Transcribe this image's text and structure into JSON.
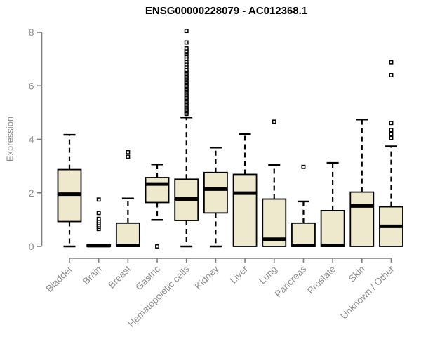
{
  "title": "ENSG00000228079 - AC012368.1",
  "chart_data": {
    "type": "boxplot",
    "title": "ENSG00000228079 - AC012368.1",
    "ylabel": "Expression",
    "xlabel": "",
    "ylim": [
      0,
      8
    ],
    "y_ticks": [
      0,
      2,
      4,
      6,
      8
    ],
    "grid": false,
    "legend": false,
    "categories": [
      "Bladder",
      "Brain",
      "Breast",
      "Gastric",
      "Hematopoietic cells",
      "Kidney",
      "Liver",
      "Lung",
      "Pancreas",
      "Prostate",
      "Skin",
      "Unknown / Other"
    ],
    "series": [
      {
        "name": "Bladder",
        "median": 1.95,
        "q1": 0.93,
        "q3": 2.87,
        "whisker_low": 0,
        "whisker_high": 4.17,
        "outliers": []
      },
      {
        "name": "Brain",
        "median": 0.03,
        "q1": 0.0,
        "q3": 0.06,
        "whisker_low": 0,
        "whisker_high": 0.06,
        "outliers": [
          0.65,
          0.73,
          0.79,
          0.87,
          0.94,
          1.03,
          1.25,
          1.75
        ]
      },
      {
        "name": "Breast",
        "median": 0.04,
        "q1": 0.0,
        "q3": 0.87,
        "whisker_low": 0,
        "whisker_high": 1.79,
        "outliers": [
          3.35,
          3.52
        ]
      },
      {
        "name": "Gastric",
        "median": 2.33,
        "q1": 1.64,
        "q3": 2.57,
        "whisker_low": 0.99,
        "whisker_high": 3.06,
        "outliers": [
          0.0
        ]
      },
      {
        "name": "Hematopoietic cells",
        "median": 1.77,
        "q1": 0.97,
        "q3": 2.51,
        "whisker_low": 0,
        "whisker_high": 4.82,
        "outliers": [
          4.95,
          5.0,
          5.05,
          5.1,
          5.15,
          5.2,
          5.25,
          5.3,
          5.35,
          5.4,
          5.45,
          5.5,
          5.55,
          5.6,
          5.65,
          5.7,
          5.75,
          5.8,
          5.85,
          5.9,
          5.95,
          6.0,
          6.05,
          6.1,
          6.15,
          6.2,
          6.25,
          6.3,
          6.35,
          6.4,
          6.45,
          6.5,
          6.55,
          6.6,
          6.7,
          6.8,
          6.9,
          7.0,
          7.1,
          7.18,
          7.25,
          7.3,
          7.4,
          7.62,
          8.05
        ]
      },
      {
        "name": "Kidney",
        "median": 2.14,
        "q1": 1.25,
        "q3": 2.76,
        "whisker_low": 0,
        "whisker_high": 3.69,
        "outliers": []
      },
      {
        "name": "Liver",
        "median": 1.99,
        "q1": 0.0,
        "q3": 2.69,
        "whisker_low": 0,
        "whisker_high": 4.2,
        "outliers": []
      },
      {
        "name": "Lung",
        "median": 0.27,
        "q1": 0.0,
        "q3": 1.77,
        "whisker_low": 0,
        "whisker_high": 3.04,
        "outliers": [
          4.66
        ]
      },
      {
        "name": "Pancreas",
        "median": 0.04,
        "q1": 0.0,
        "q3": 0.87,
        "whisker_low": 0,
        "whisker_high": 1.68,
        "outliers": [
          2.97
        ]
      },
      {
        "name": "Prostate",
        "median": 0.04,
        "q1": 0.0,
        "q3": 1.34,
        "whisker_low": 0,
        "whisker_high": 3.12,
        "outliers": []
      },
      {
        "name": "Skin",
        "median": 1.51,
        "q1": 0.0,
        "q3": 2.03,
        "whisker_low": 0,
        "whisker_high": 4.74,
        "outliers": []
      },
      {
        "name": "Unknown / Other",
        "median": 0.75,
        "q1": 0.0,
        "q3": 1.48,
        "whisker_low": 0,
        "whisker_high": 3.74,
        "outliers": [
          4.05,
          4.2,
          4.35,
          4.61,
          6.4,
          6.88
        ]
      }
    ],
    "colors": {
      "box_fill": "#EEE8CD",
      "box_stroke": "#000000",
      "median": "#000000",
      "whisker": "#000000",
      "outlier_fill": "#ffffff",
      "outlier_stroke": "#000000",
      "axis_line": "#7f7f7f",
      "tick_label": "#8c8c8c",
      "title": "#000000"
    }
  }
}
